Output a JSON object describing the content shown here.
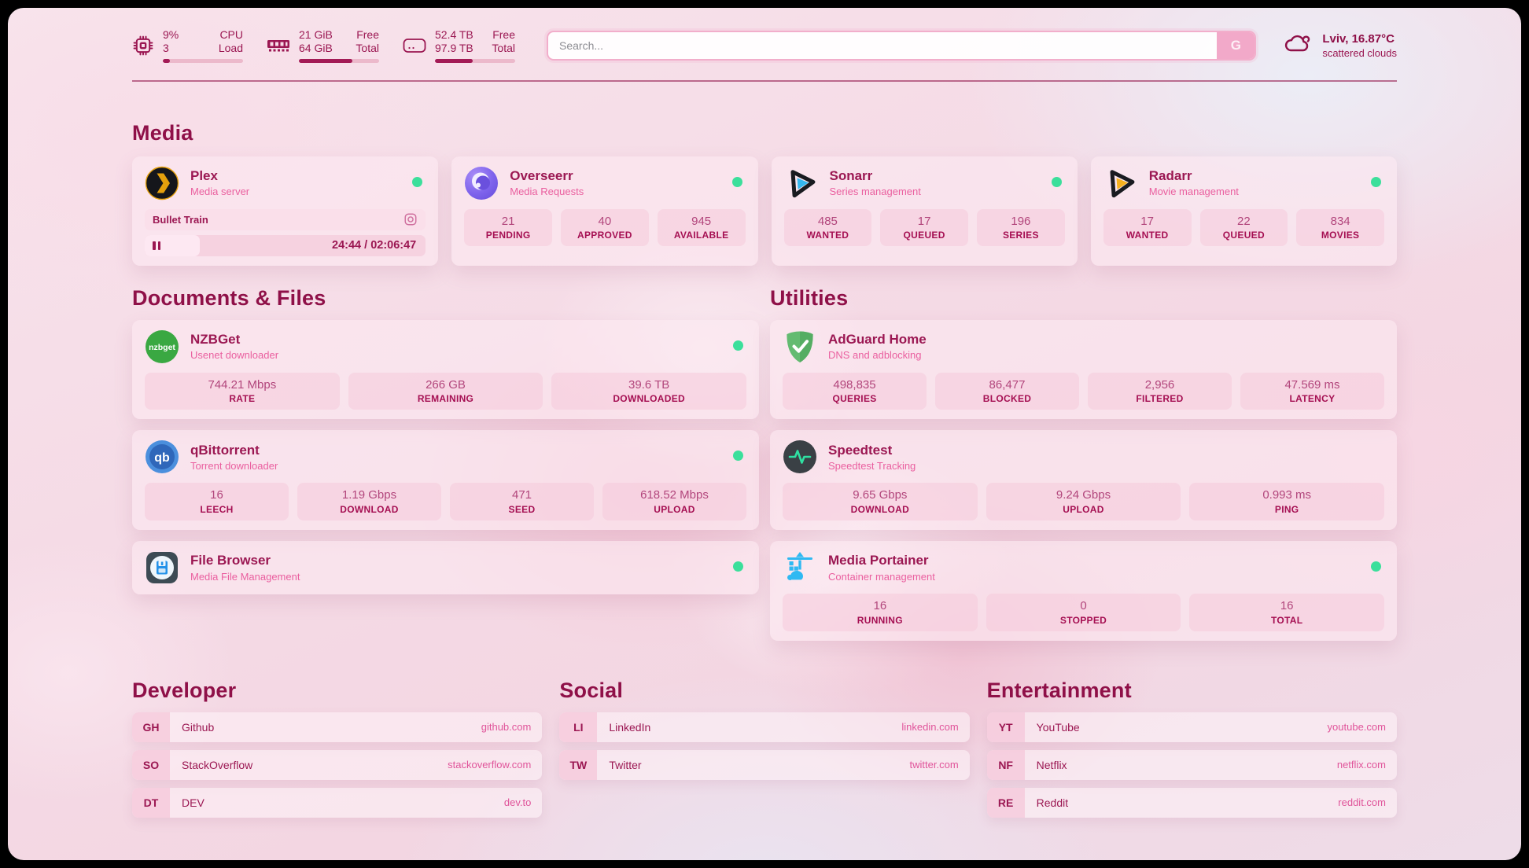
{
  "colors": {
    "accent": "#9b1752",
    "accent_dark": "#8f1048",
    "pink_secondary": "#ea5f9f",
    "status_online": "#3bdf9b",
    "tile_bg": "#f6c7d9",
    "url_link": "#e0549a",
    "search_button_bg": "#f2a9c9"
  },
  "header": {
    "stats": [
      {
        "icon": "cpu-icon",
        "rows": [
          {
            "value": "9%",
            "label": "CPU"
          },
          {
            "value": "3",
            "label": "Load"
          }
        ],
        "progress_pct": 9
      },
      {
        "icon": "ram-icon",
        "rows": [
          {
            "value": "21 GiB",
            "label": "Free"
          },
          {
            "value": "64 GiB",
            "label": "Total"
          }
        ],
        "progress_pct": 67
      },
      {
        "icon": "disk-icon",
        "rows": [
          {
            "value": "52.4 TB",
            "label": "Free"
          },
          {
            "value": "97.9 TB",
            "label": "Total"
          }
        ],
        "progress_pct": 47
      }
    ],
    "search": {
      "placeholder": "Search...",
      "button_label": "G"
    },
    "weather": {
      "icon": "cloud-icon",
      "location": "Lviv, 16.87°C",
      "condition": "scattered clouds"
    }
  },
  "sections": {
    "media": {
      "title": "Media",
      "cards": [
        {
          "icon": "plex-icon",
          "title": "Plex",
          "subtitle": "Media server",
          "online": true,
          "player": {
            "track": "Bullet Train",
            "time": "24:44 / 02:06:47",
            "progress_pct": 19.5
          }
        },
        {
          "icon": "overseerr-icon",
          "title": "Overseerr",
          "subtitle": "Media Requests",
          "online": true,
          "stats": [
            {
              "value": "21",
              "label": "PENDING"
            },
            {
              "value": "40",
              "label": "APPROVED"
            },
            {
              "value": "945",
              "label": "AVAILABLE"
            }
          ]
        },
        {
          "icon": "sonarr-icon",
          "title": "Sonarr",
          "subtitle": "Series management",
          "online": true,
          "stats": [
            {
              "value": "485",
              "label": "WANTED"
            },
            {
              "value": "17",
              "label": "QUEUED"
            },
            {
              "value": "196",
              "label": "SERIES"
            }
          ]
        },
        {
          "icon": "radarr-icon",
          "title": "Radarr",
          "subtitle": "Movie management",
          "online": true,
          "stats": [
            {
              "value": "17",
              "label": "WANTED"
            },
            {
              "value": "22",
              "label": "QUEUED"
            },
            {
              "value": "834",
              "label": "MOVIES"
            }
          ]
        }
      ]
    },
    "documents": {
      "title": "Documents & Files",
      "cards": [
        {
          "icon": "nzbget-icon",
          "title": "NZBGet",
          "subtitle": "Usenet downloader",
          "online": true,
          "stats": [
            {
              "value": "744.21 Mbps",
              "label": "RATE"
            },
            {
              "value": "266 GB",
              "label": "REMAINING"
            },
            {
              "value": "39.6 TB",
              "label": "DOWNLOADED"
            }
          ]
        },
        {
          "icon": "qbittorrent-icon",
          "title": "qBittorrent",
          "subtitle": "Torrent downloader",
          "online": true,
          "stats": [
            {
              "value": "16",
              "label": "LEECH"
            },
            {
              "value": "1.19 Gbps",
              "label": "DOWNLOAD"
            },
            {
              "value": "471",
              "label": "SEED"
            },
            {
              "value": "618.52 Mbps",
              "label": "UPLOAD"
            }
          ]
        },
        {
          "icon": "filebrowser-icon",
          "title": "File Browser",
          "subtitle": "Media File Management",
          "online": true
        }
      ]
    },
    "utilities": {
      "title": "Utilities",
      "cards": [
        {
          "icon": "adguard-icon",
          "title": "AdGuard Home",
          "subtitle": "DNS and adblocking",
          "online": false,
          "stats": [
            {
              "value": "498,835",
              "label": "QUERIES"
            },
            {
              "value": "86,477",
              "label": "BLOCKED"
            },
            {
              "value": "2,956",
              "label": "FILTERED"
            },
            {
              "value": "47.569 ms",
              "label": "LATENCY"
            }
          ]
        },
        {
          "icon": "speedtest-icon",
          "title": "Speedtest",
          "subtitle": "Speedtest Tracking",
          "online": false,
          "stats": [
            {
              "value": "9.65 Gbps",
              "label": "DOWNLOAD"
            },
            {
              "value": "9.24 Gbps",
              "label": "UPLOAD"
            },
            {
              "value": "0.993 ms",
              "label": "PING"
            }
          ]
        },
        {
          "icon": "portainer-icon",
          "title": "Media Portainer",
          "subtitle": "Container management",
          "online": true,
          "stats": [
            {
              "value": "16",
              "label": "RUNNING"
            },
            {
              "value": "0",
              "label": "STOPPED"
            },
            {
              "value": "16",
              "label": "TOTAL"
            }
          ]
        }
      ]
    },
    "developer": {
      "title": "Developer",
      "bookmarks": [
        {
          "abbr": "GH",
          "name": "Github",
          "url": "github.com"
        },
        {
          "abbr": "SO",
          "name": "StackOverflow",
          "url": "stackoverflow.com"
        },
        {
          "abbr": "DT",
          "name": "DEV",
          "url": "dev.to"
        }
      ]
    },
    "social": {
      "title": "Social",
      "bookmarks": [
        {
          "abbr": "LI",
          "name": "LinkedIn",
          "url": "linkedin.com"
        },
        {
          "abbr": "TW",
          "name": "Twitter",
          "url": "twitter.com"
        }
      ]
    },
    "entertainment": {
      "title": "Entertainment",
      "bookmarks": [
        {
          "abbr": "YT",
          "name": "YouTube",
          "url": "youtube.com"
        },
        {
          "abbr": "NF",
          "name": "Netflix",
          "url": "netflix.com"
        },
        {
          "abbr": "RE",
          "name": "Reddit",
          "url": "reddit.com"
        }
      ]
    }
  }
}
